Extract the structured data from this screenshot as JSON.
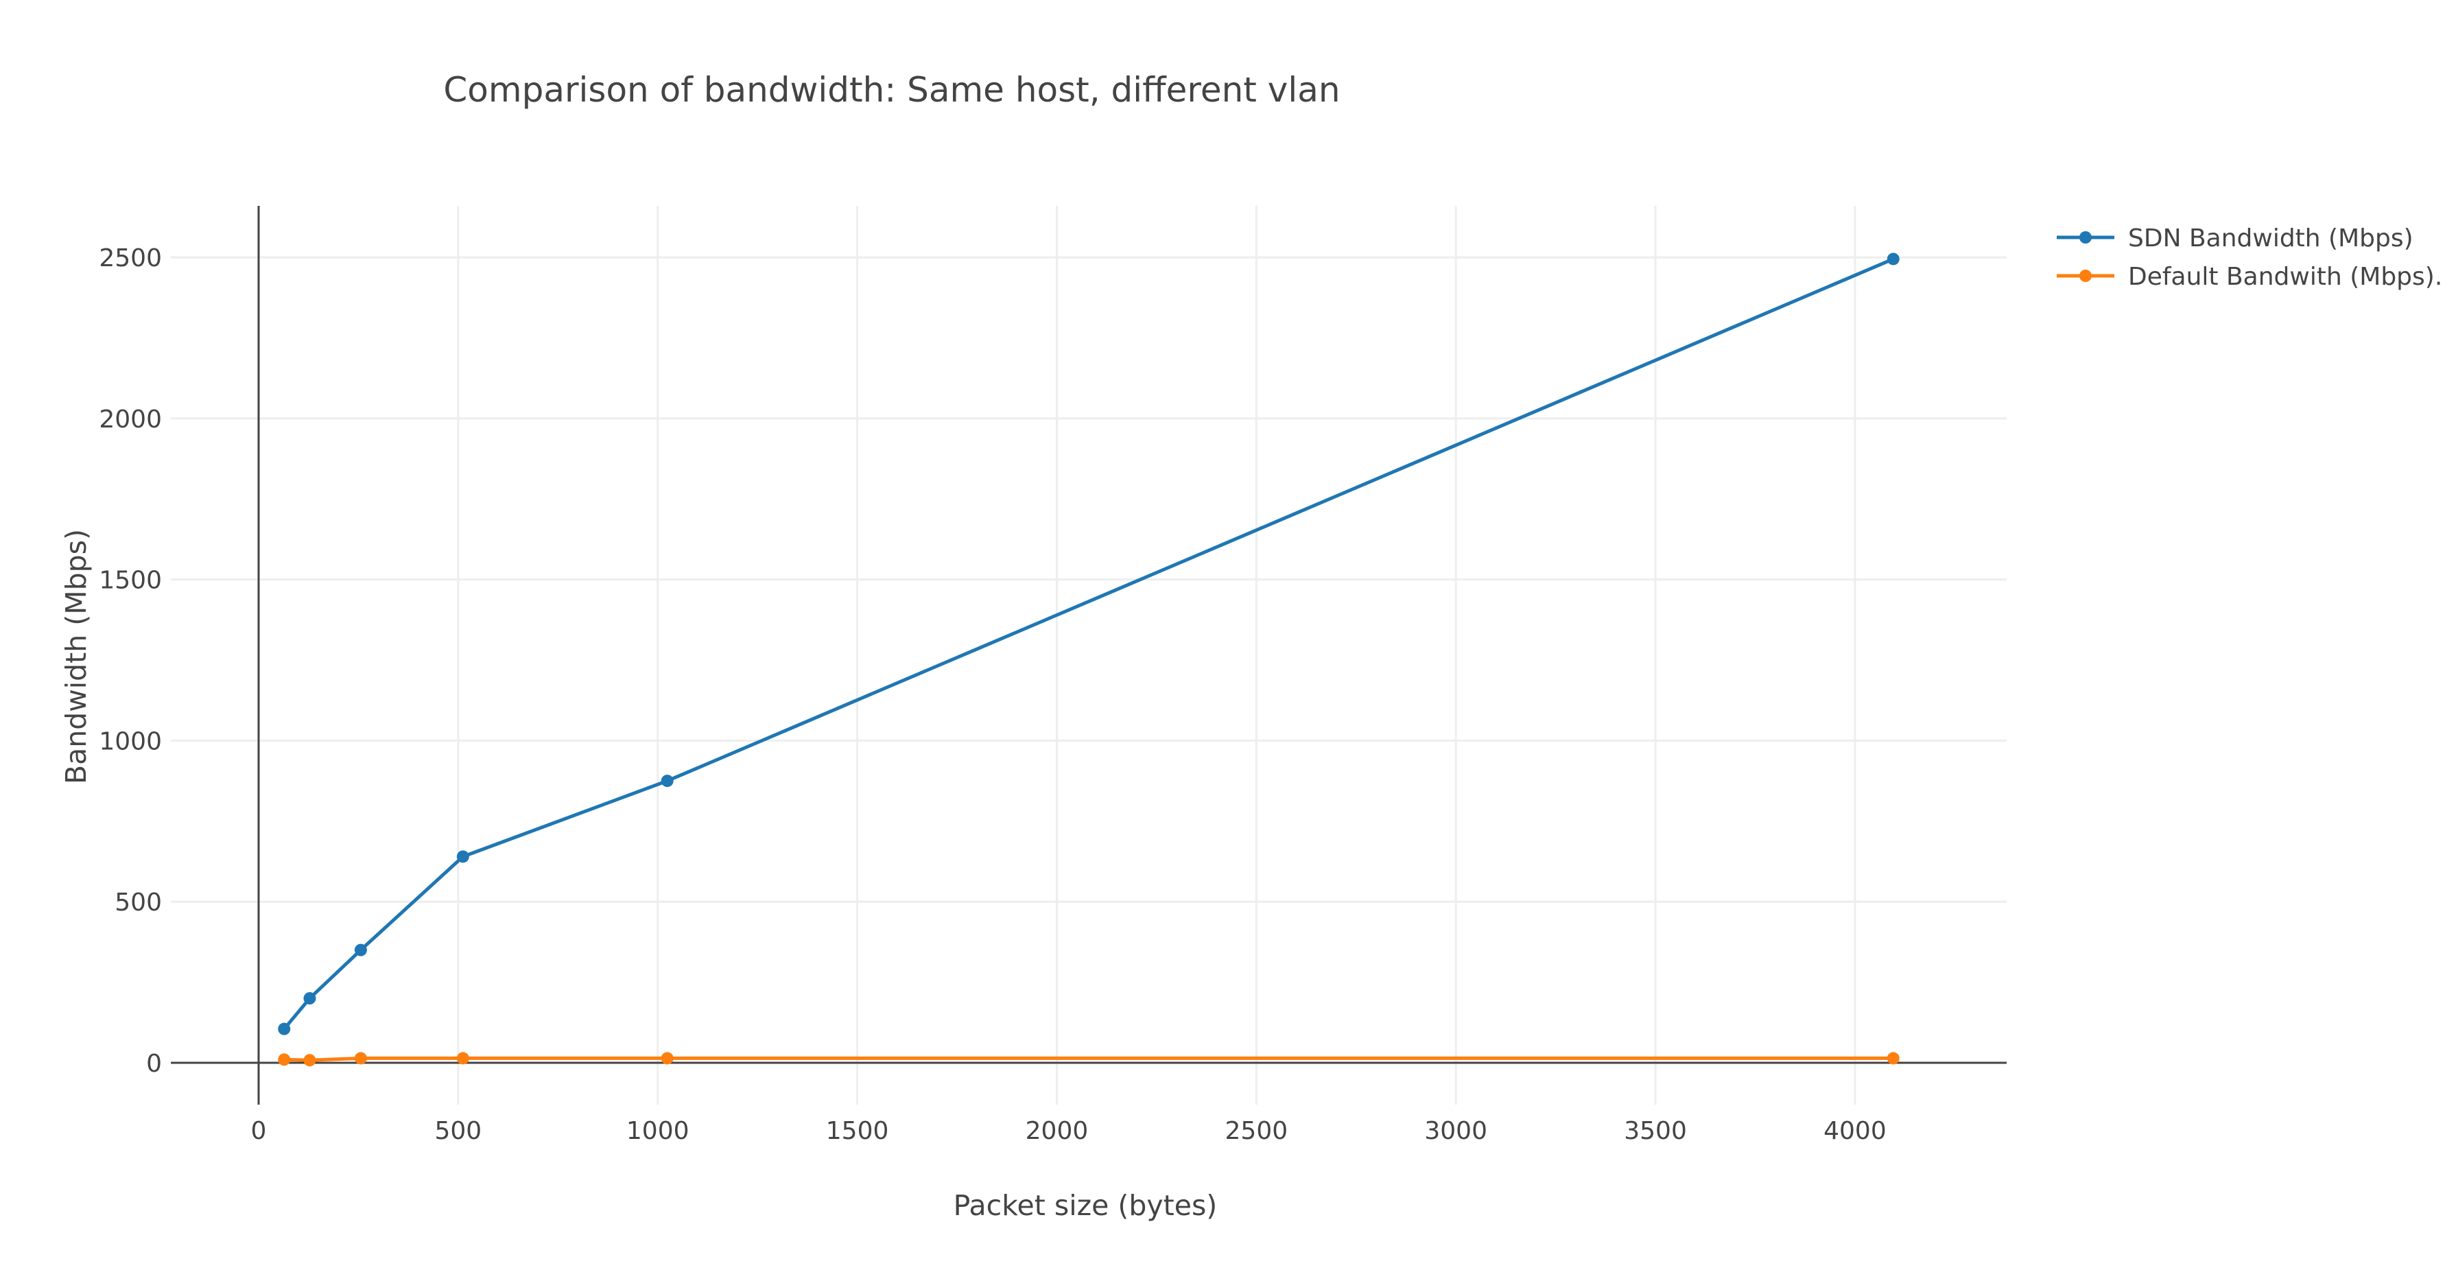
{
  "chart_data": {
    "type": "line",
    "title": "Comparison of bandwidth: Same host, different vlan",
    "xlabel": "Packet size (bytes)",
    "ylabel": "Bandwidth (Mbps)",
    "xlim": [
      -220,
      4380
    ],
    "ylim": [
      -130,
      2660
    ],
    "xticks": [
      0,
      500,
      1000,
      1500,
      2000,
      2500,
      3000,
      3500,
      4000
    ],
    "yticks": [
      0,
      500,
      1000,
      1500,
      2000,
      2500
    ],
    "grid": true,
    "legend_position": "top-right",
    "x": [
      64,
      128,
      256,
      512,
      1024,
      4096
    ],
    "series": [
      {
        "name": "SDN Bandwidth (Mbps)",
        "color": "#1f77b4",
        "values": [
          105,
          200,
          350,
          640,
          875,
          2495
        ]
      },
      {
        "name": "Default Bandwith (Mbps).",
        "color": "#ff7f0e",
        "values": [
          10,
          8,
          14,
          14,
          14,
          14
        ]
      }
    ]
  }
}
